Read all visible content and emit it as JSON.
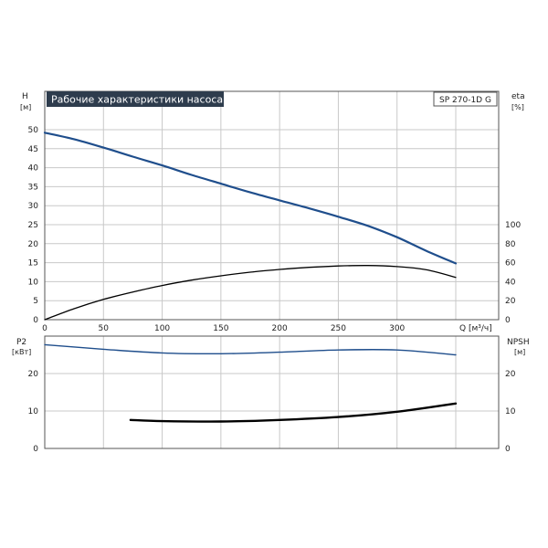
{
  "title": "Рабочие характеристики насоса",
  "model": "SP 270-1D G",
  "colors": {
    "head_curve": "#1f4e8c",
    "eta_curve": "#000000",
    "p2_curve": "#1f4e8c",
    "npsh_curve": "#000000",
    "grid": "#c8c8c8",
    "title_bg": "#2e3c4d"
  },
  "chart_data": [
    {
      "type": "line",
      "xlabel": "Q [м³/ч]",
      "ylabel_left": {
        "name": "H",
        "unit": "[м]"
      },
      "ylabel_right": {
        "name": "eta",
        "unit": "[%]"
      },
      "xlim": [
        0,
        350
      ],
      "ylim_left": [
        0,
        50
      ],
      "ylim_right": [
        0,
        100
      ],
      "x_ticks": [
        "0",
        "50",
        "100",
        "150",
        "200",
        "250",
        "300"
      ],
      "y_ticks_left": [
        "0",
        "5",
        "10",
        "15",
        "20",
        "25",
        "30",
        "35",
        "40",
        "45",
        "50"
      ],
      "y_ticks_right": [
        "0",
        "20",
        "40",
        "60",
        "80",
        "100"
      ],
      "grid": true,
      "series": [
        {
          "axis": "left",
          "x": [
            0,
            25,
            50,
            75,
            100,
            125,
            150,
            175,
            200,
            225,
            250,
            275,
            300,
            325,
            350
          ],
          "values": [
            49.2,
            47.5,
            45.3,
            42.9,
            40.6,
            38.1,
            35.8,
            33.5,
            31.4,
            29.3,
            27.1,
            24.7,
            21.7,
            18.1,
            14.8
          ]
        },
        {
          "axis": "right",
          "x": [
            0,
            25,
            50,
            75,
            100,
            125,
            150,
            175,
            200,
            225,
            250,
            275,
            300,
            325,
            350
          ],
          "values": [
            0,
            11.5,
            21.3,
            29.1,
            36.0,
            41.6,
            46.2,
            50.0,
            52.9,
            55.1,
            56.5,
            57.0,
            55.9,
            52.5,
            44.5
          ]
        }
      ]
    },
    {
      "type": "line",
      "xlim": [
        0,
        350
      ],
      "ylabel_left": {
        "name": "P2",
        "unit": "[кВт]"
      },
      "ylabel_right": {
        "name": "NPSH",
        "unit": "[м]"
      },
      "ylim_left": [
        0,
        30
      ],
      "ylim_right": [
        0,
        30
      ],
      "y_ticks_left": [
        "0",
        "10",
        "20"
      ],
      "y_ticks_right": [
        "0",
        "10",
        "20"
      ],
      "grid": true,
      "series": [
        {
          "axis": "left",
          "x": [
            0,
            50,
            100,
            150,
            200,
            250,
            300,
            350
          ],
          "values": [
            27.7,
            26.5,
            25.5,
            25.3,
            25.7,
            26.3,
            26.3,
            25.0
          ]
        },
        {
          "axis": "right",
          "x": [
            73,
            100,
            150,
            200,
            250,
            300,
            350
          ],
          "values": [
            7.6,
            7.3,
            7.2,
            7.6,
            8.4,
            9.8,
            12.0
          ]
        }
      ]
    }
  ]
}
